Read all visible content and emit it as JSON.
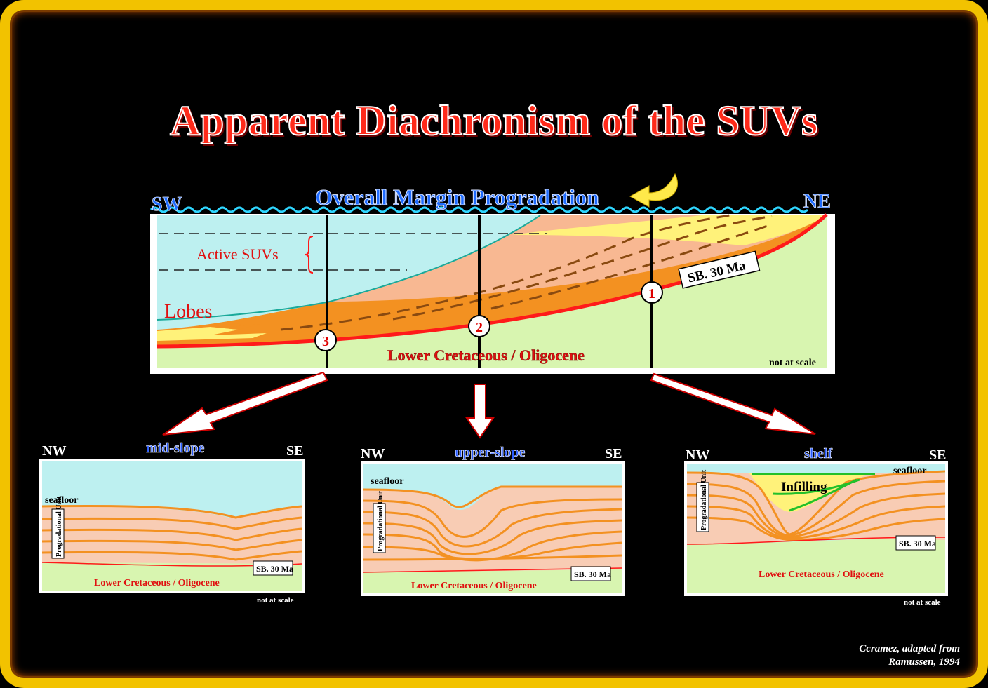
{
  "title": "Apparent Diachronism of the SUVs",
  "main_section": {
    "heading": "Overall Margin Progradation",
    "left_dir": "SW",
    "right_dir": "NE",
    "active_label": "Active SUVs",
    "lobes_label": "Lobes",
    "sb_label": "SB. 30 Ma",
    "base_label": "Lower Cretaceous / Oligocene",
    "scale_note": "not at scale",
    "well_labels": [
      "1",
      "2",
      "3"
    ]
  },
  "panels": [
    {
      "title": "mid-slope",
      "left_dir": "NW",
      "right_dir": "SE",
      "seafloor": "seafloor",
      "unit_label": "Progradational Unit",
      "sb_label": "SB. 30 Ma",
      "base_label": "Lower Cretaceous / Oligocene",
      "scale_note": "not at scale"
    },
    {
      "title": "upper-slope",
      "left_dir": "NW",
      "right_dir": "SE",
      "seafloor": "seafloor",
      "unit_label": "Progradational Unit",
      "sb_label": "SB. 30 Ma",
      "base_label": "Lower Cretaceous / Oligocene",
      "scale_note": ""
    },
    {
      "title": "shelf",
      "left_dir": "NW",
      "right_dir": "SE",
      "seafloor": "seafloor",
      "unit_label": "Progradational Unit",
      "sb_label": "SB. 30 Ma",
      "base_label": "Lower Cretaceous / Oligocene",
      "scale_note": "not at scale",
      "infill_label": "Infilling"
    }
  ],
  "credit": {
    "line1": "Ccramez, adapted from",
    "line2": "Ramussen, 1994"
  },
  "colors": {
    "water": "#bdf0f0",
    "sediment": "#f8ccb4",
    "orange": "#f39121",
    "yellow": "#fff27a",
    "base": "#d8f5b0",
    "red": "#ff1a1a",
    "frame": "#f2c200"
  }
}
